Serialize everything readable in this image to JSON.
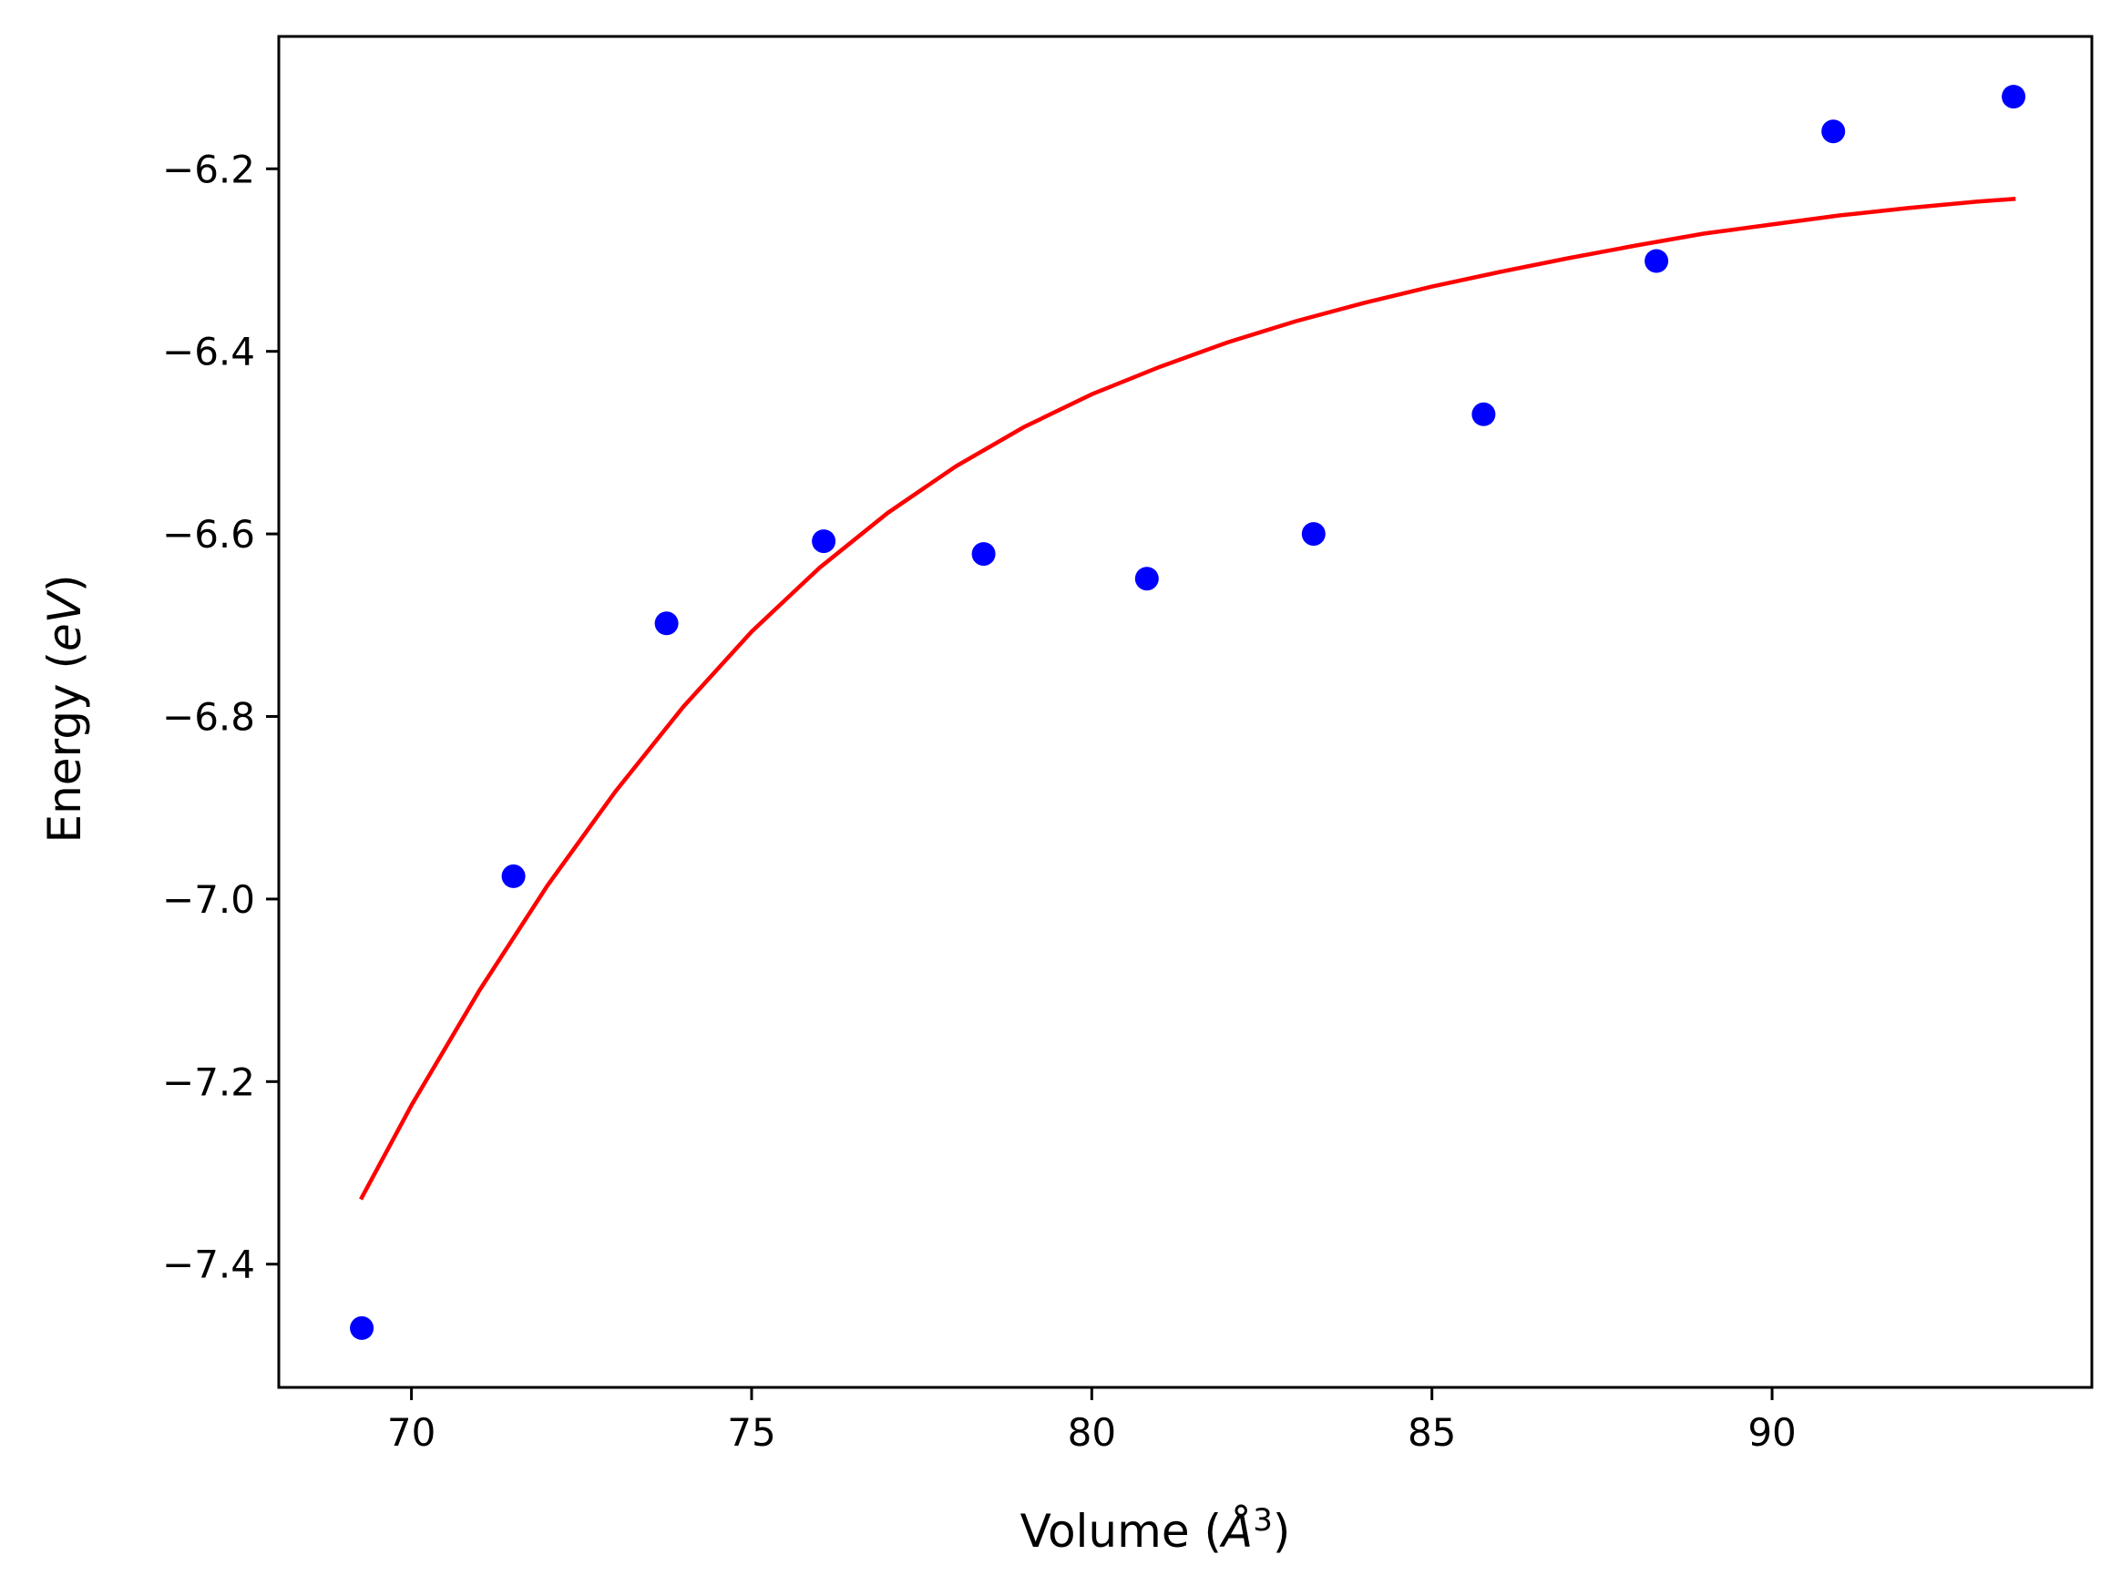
{
  "chart_data": {
    "type": "scatter",
    "xlabel": "Volume (",
    "xlabel_unit_symbol": "Å",
    "xlabel_unit_exponent": "3",
    "xlabel_close": ")",
    "ylabel": "Energy (",
    "ylabel_unit": "eV",
    "ylabel_close": ")",
    "xlim": [
      68.05,
      94.7
    ],
    "ylim": [
      -7.535,
      -6.055
    ],
    "x_ticks": [
      70,
      75,
      80,
      85,
      90
    ],
    "x_tick_labels": [
      "70",
      "75",
      "80",
      "85",
      "90"
    ],
    "y_ticks": [
      -7.4,
      -7.2,
      -7.0,
      -6.8,
      -6.6,
      -6.4,
      -6.2
    ],
    "y_tick_labels": [
      "−7.4",
      "−7.2",
      "−7.0",
      "−6.8",
      "−6.6",
      "−6.4",
      "−6.2"
    ],
    "grid": false,
    "series": [
      {
        "kind": "points",
        "color": "#0000ff",
        "x": [
          69.27,
          71.5,
          73.75,
          76.06,
          78.41,
          80.81,
          83.26,
          85.76,
          88.3,
          90.9,
          93.55
        ],
        "y": [
          -7.47,
          -6.975,
          -6.698,
          -6.608,
          -6.622,
          -6.649,
          -6.6,
          -6.469,
          -6.301,
          -6.159,
          -6.121
        ]
      },
      {
        "kind": "line",
        "color": "#ff0000",
        "x": [
          69.27,
          70.0,
          71.0,
          72.0,
          73.0,
          74.0,
          75.0,
          76.0,
          77.0,
          78.0,
          79.0,
          80.0,
          81.0,
          82.0,
          83.0,
          84.0,
          85.0,
          86.0,
          87.0,
          88.0,
          89.0,
          90.0,
          91.0,
          92.0,
          93.0,
          93.55
        ],
        "y": [
          -7.327,
          -7.226,
          -7.1,
          -6.985,
          -6.882,
          -6.789,
          -6.707,
          -6.637,
          -6.577,
          -6.526,
          -6.483,
          -6.447,
          -6.417,
          -6.39,
          -6.367,
          -6.347,
          -6.329,
          -6.313,
          -6.298,
          -6.284,
          -6.271,
          -6.261,
          -6.251,
          -6.243,
          -6.236,
          -6.233
        ]
      }
    ]
  }
}
